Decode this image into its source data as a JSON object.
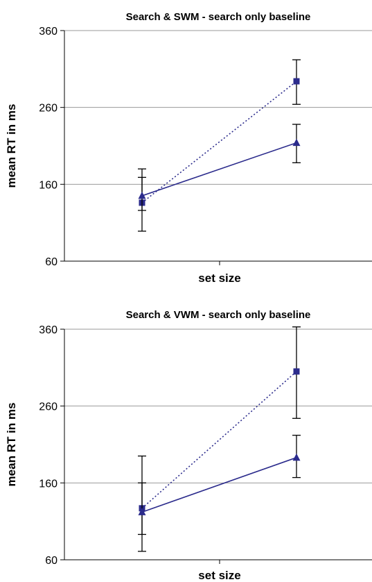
{
  "chart_data": [
    {
      "type": "line",
      "title": "Search & SWM - search only baseline",
      "xlabel": "set size",
      "ylabel": "mean RT in ms",
      "ylim": [
        60,
        360
      ],
      "yticks": [
        "60",
        "160",
        "260",
        "360"
      ],
      "grid": true,
      "legend": "none",
      "series": [
        {
          "style": "dotted",
          "marker": "square",
          "color": "#2b2b8c",
          "values": [
            136,
            294
          ],
          "error": [
            [
              99,
              169
            ],
            [
              264,
              322
            ]
          ]
        },
        {
          "style": "solid",
          "marker": "triangle",
          "color": "#2b2b8c",
          "values": [
            145,
            214
          ],
          "error": [
            [
              126,
              180
            ],
            [
              188,
              238
            ]
          ]
        }
      ]
    },
    {
      "type": "line",
      "title": "Search & VWM - search only baseline",
      "xlabel": "set size",
      "ylabel": "mean RT in ms",
      "ylim": [
        60,
        360
      ],
      "yticks": [
        "60",
        "160",
        "260",
        "360"
      ],
      "grid": true,
      "legend": "none",
      "series": [
        {
          "style": "dotted",
          "marker": "square",
          "color": "#2b2b8c",
          "values": [
            127,
            305
          ],
          "error": [
            [
              93,
              160
            ],
            [
              244,
              363
            ]
          ]
        },
        {
          "style": "solid",
          "marker": "triangle",
          "color": "#2b2b8c",
          "values": [
            122,
            193
          ],
          "error": [
            [
              71,
              195
            ],
            [
              167,
              222
            ]
          ]
        }
      ]
    }
  ]
}
